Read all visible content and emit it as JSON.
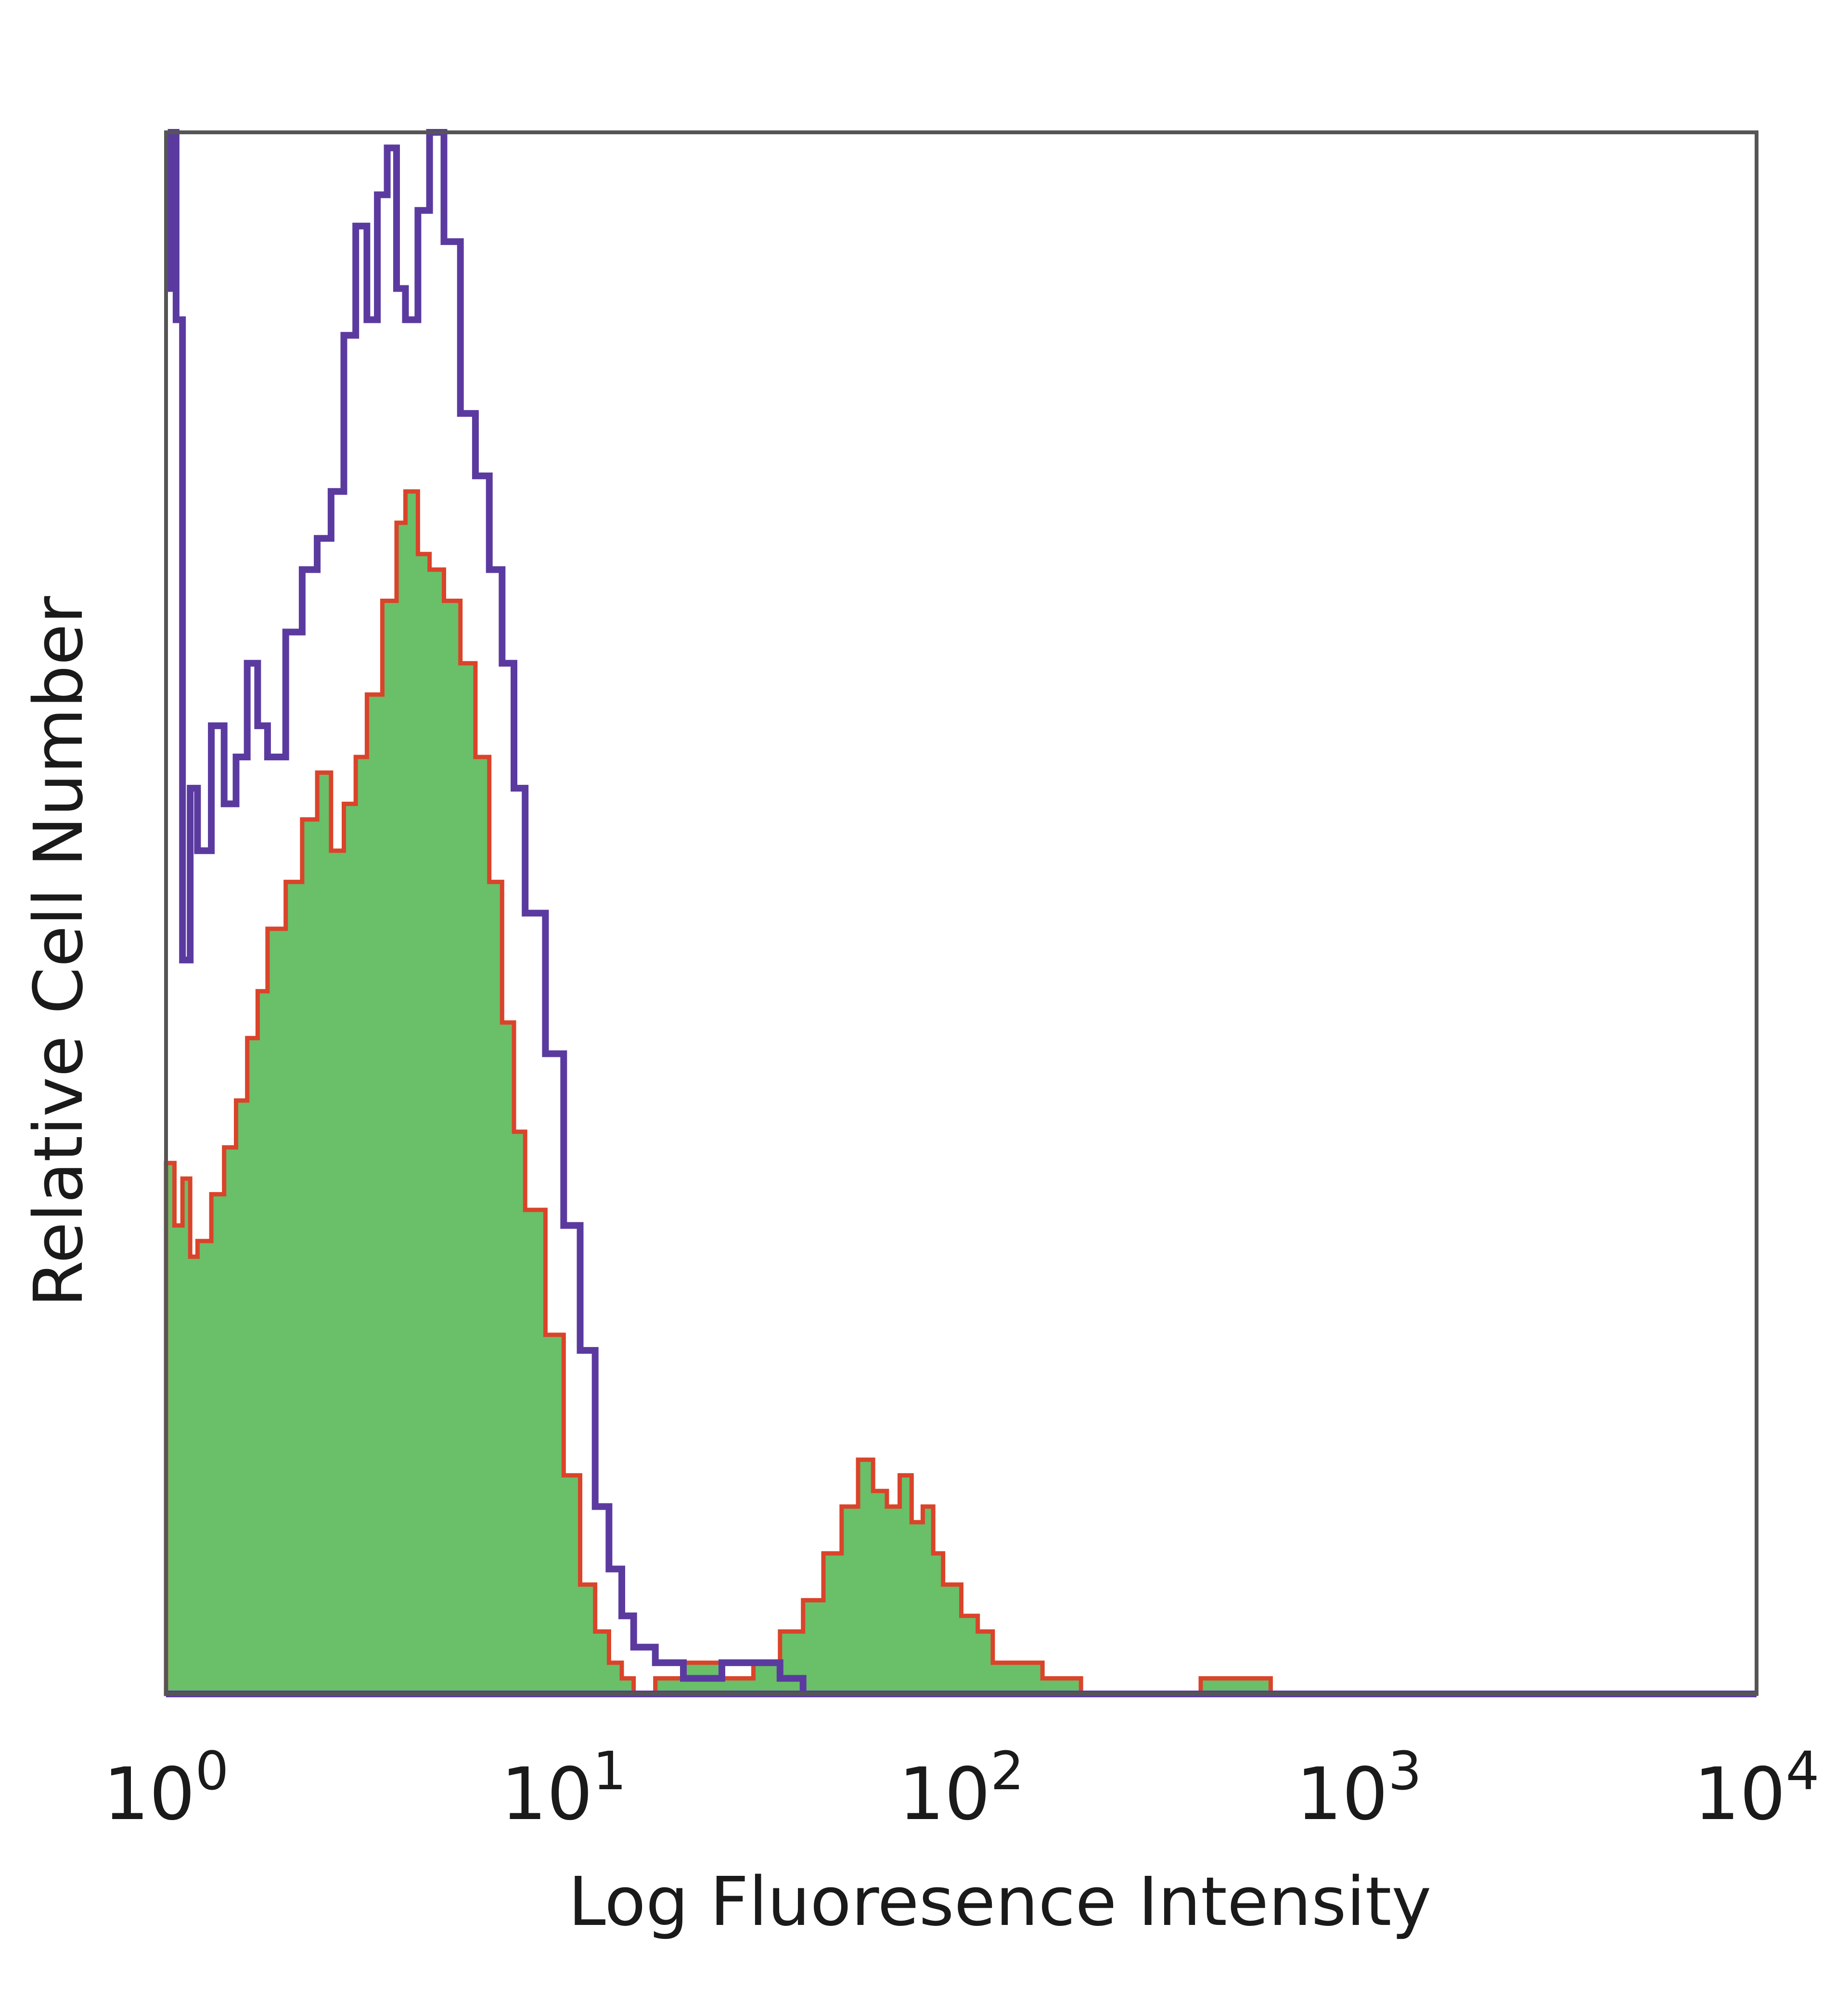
{
  "chart_data": {
    "type": "area",
    "title": "",
    "xlabel": "Log Fluoresence Intensity",
    "ylabel": "Relative Cell Number",
    "x_scale": "log",
    "xlim": [
      1,
      10000
    ],
    "ylim": [
      0,
      100
    ],
    "x_ticks": [
      {
        "base": "10",
        "exp": "0"
      },
      {
        "base": "10",
        "exp": "1"
      },
      {
        "base": "10",
        "exp": "2"
      },
      {
        "base": "10",
        "exp": "3"
      },
      {
        "base": "10",
        "exp": "4"
      }
    ],
    "x_tick_values": [
      1,
      10,
      100,
      1000,
      10000
    ],
    "grid": false,
    "legend": "none",
    "colors": {
      "filled": "#6abf69",
      "filled_outline": "#d9442a",
      "overlay": "#5b3aa0",
      "frame": "#555555"
    },
    "series": [
      {
        "style": "filled",
        "x": [
          1.0,
          1.05,
          1.1,
          1.15,
          1.2,
          1.3,
          1.4,
          1.5,
          1.6,
          1.7,
          1.8,
          2.0,
          2.2,
          2.4,
          2.6,
          2.8,
          3.0,
          3.2,
          3.5,
          3.8,
          4.0,
          4.3,
          4.6,
          5.0,
          5.5,
          6.0,
          6.5,
          7.0,
          7.5,
          8.0,
          9.0,
          10.0,
          11.0,
          12.0,
          13.0,
          14.0,
          15.0,
          17.0,
          20.0,
          25.0,
          30.0,
          35.0,
          40.0,
          45.0,
          50.0,
          55.0,
          60.0,
          65.0,
          70.0,
          75.0,
          80.0,
          85.0,
          90.0,
          100.0,
          110.0,
          120.0,
          140.0,
          160.0,
          180.0,
          200.0,
          300.0,
          400.0,
          500.0,
          600.0,
          1000.0,
          10000.0
        ],
        "y": [
          34,
          30,
          33,
          28,
          29,
          32,
          35,
          38,
          42,
          45,
          49,
          52,
          56,
          59,
          54,
          57,
          60,
          64,
          70,
          75,
          77,
          73,
          72,
          70,
          66,
          60,
          52,
          43,
          36,
          31,
          23,
          14,
          7,
          4,
          2,
          1,
          0,
          1,
          2,
          1,
          2,
          4,
          6,
          9,
          12,
          15,
          13,
          12,
          14,
          11,
          12,
          9,
          7,
          5,
          4,
          2,
          2,
          1,
          1,
          0,
          0,
          1,
          1,
          0,
          0,
          0
        ]
      },
      {
        "style": "outline",
        "x": [
          1.0,
          1.03,
          1.06,
          1.1,
          1.15,
          1.2,
          1.3,
          1.4,
          1.5,
          1.6,
          1.7,
          1.8,
          2.0,
          2.2,
          2.4,
          2.6,
          2.8,
          3.0,
          3.2,
          3.4,
          3.6,
          3.8,
          4.0,
          4.3,
          4.6,
          5.0,
          5.5,
          6.0,
          6.5,
          7.0,
          7.5,
          8.0,
          9.0,
          10.0,
          11.0,
          12.0,
          13.0,
          14.0,
          15.0,
          17.0,
          20.0,
          25.0,
          30.0,
          35.0,
          40.0,
          60.0,
          100.0,
          1000.0,
          10000.0
        ],
        "y": [
          90,
          100,
          88,
          47,
          58,
          54,
          62,
          57,
          60,
          66,
          62,
          60,
          68,
          72,
          74,
          77,
          87,
          94,
          88,
          96,
          99,
          90,
          88,
          95,
          100,
          93,
          82,
          78,
          72,
          66,
          58,
          50,
          41,
          30,
          22,
          12,
          8,
          5,
          3,
          2,
          1,
          2,
          2,
          1,
          0,
          0,
          0,
          0,
          0
        ]
      }
    ]
  }
}
